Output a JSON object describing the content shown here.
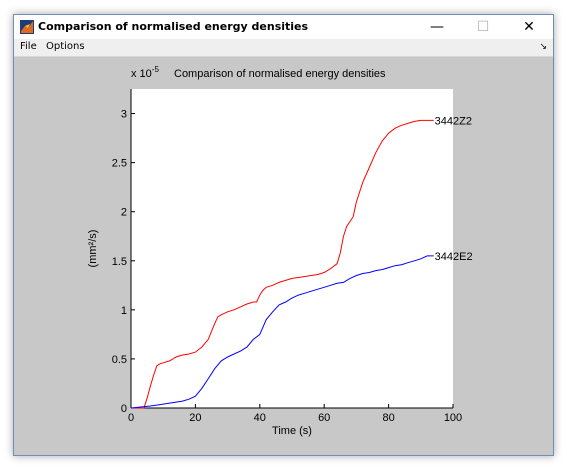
{
  "window": {
    "title": "Comparison of normalised energy densities",
    "minimize_glyph": "—",
    "maximize_glyph": "☐",
    "close_glyph": "✕",
    "icon": "matlab-icon"
  },
  "menu": {
    "items": [
      "File",
      "Options"
    ],
    "dock_glyph": "↘"
  },
  "chart_data": {
    "type": "line",
    "title": "Comparison of normalised energy densities",
    "xlabel": "Time (s)",
    "ylabel": "(mm²/s)",
    "exponent_prefix": "x 10",
    "exponent_power": "-5",
    "xlim": [
      0,
      100
    ],
    "ylim": [
      0,
      3.25
    ],
    "xticks": [
      0,
      20,
      40,
      60,
      80,
      100
    ],
    "xtick_labels": [
      "0",
      "20",
      "40",
      "60",
      "80",
      "100"
    ],
    "yticks": [
      0,
      0.5,
      1,
      1.5,
      2,
      2.5,
      3
    ],
    "ytick_labels": [
      "0",
      "0.5",
      "1",
      "1.5",
      "2",
      "2.5",
      "3"
    ],
    "grid": false,
    "series": [
      {
        "name": "3442Z2",
        "color": "#ff0000",
        "x": [
          0,
          2,
          4,
          5,
          6,
          7,
          8,
          9,
          10,
          12,
          14,
          16,
          18,
          20,
          22,
          24,
          25,
          26,
          27,
          28,
          30,
          32,
          34,
          36,
          38,
          39,
          40,
          41,
          42,
          44,
          46,
          48,
          50,
          52,
          54,
          56,
          58,
          60,
          62,
          64,
          65,
          66,
          67,
          68,
          69,
          70,
          72,
          74,
          76,
          78,
          80,
          82,
          84,
          86,
          88,
          90,
          92,
          94
        ],
        "y": [
          0,
          0,
          0,
          0.1,
          0.22,
          0.33,
          0.43,
          0.45,
          0.46,
          0.48,
          0.52,
          0.54,
          0.55,
          0.57,
          0.62,
          0.7,
          0.78,
          0.86,
          0.93,
          0.95,
          0.98,
          1.0,
          1.03,
          1.06,
          1.08,
          1.08,
          1.15,
          1.2,
          1.23,
          1.25,
          1.28,
          1.3,
          1.32,
          1.33,
          1.34,
          1.35,
          1.36,
          1.38,
          1.42,
          1.47,
          1.58,
          1.75,
          1.85,
          1.9,
          1.95,
          2.1,
          2.3,
          2.45,
          2.6,
          2.72,
          2.8,
          2.85,
          2.88,
          2.9,
          2.92,
          2.93,
          2.93,
          2.93
        ]
      },
      {
        "name": "3442E2",
        "color": "#0000ff",
        "x": [
          0,
          3,
          6,
          8,
          10,
          12,
          14,
          16,
          18,
          20,
          22,
          24,
          26,
          28,
          30,
          32,
          34,
          36,
          38,
          40,
          42,
          44,
          46,
          48,
          50,
          52,
          54,
          56,
          58,
          60,
          62,
          64,
          66,
          68,
          70,
          72,
          74,
          76,
          78,
          80,
          82,
          84,
          86,
          88,
          90,
          92,
          94
        ],
        "y": [
          0,
          0.01,
          0.02,
          0.03,
          0.04,
          0.05,
          0.06,
          0.07,
          0.09,
          0.12,
          0.2,
          0.3,
          0.4,
          0.48,
          0.52,
          0.55,
          0.58,
          0.62,
          0.7,
          0.75,
          0.9,
          0.98,
          1.05,
          1.08,
          1.12,
          1.15,
          1.17,
          1.19,
          1.21,
          1.23,
          1.25,
          1.27,
          1.28,
          1.32,
          1.35,
          1.37,
          1.38,
          1.4,
          1.41,
          1.43,
          1.45,
          1.46,
          1.48,
          1.5,
          1.52,
          1.55,
          1.55
        ]
      }
    ]
  }
}
